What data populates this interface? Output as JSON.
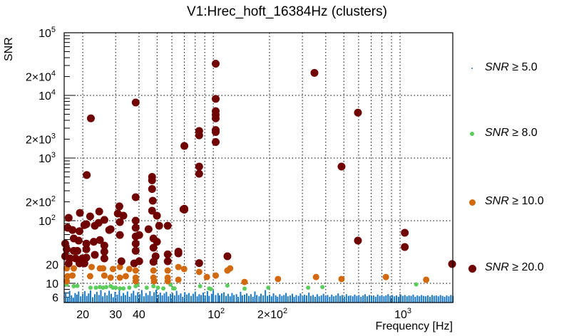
{
  "chart_data": {
    "type": "scatter",
    "title": "V1:Hrec_hoft_16384Hz (clusters)",
    "xlabel": "Frequency [Hz]",
    "ylabel": "SNR",
    "xscale": "log",
    "yscale": "log",
    "xlim": [
      15.9,
      1916
    ],
    "ylim": [
      4.93,
      100000
    ],
    "grid": true,
    "legend_position": "right",
    "x_ticks": [
      {
        "value": 20,
        "base": "20",
        "exp": ""
      },
      {
        "value": 30,
        "base": "30",
        "exp": ""
      },
      {
        "value": 40,
        "base": "40",
        "exp": ""
      },
      {
        "value": 100,
        "base": "10",
        "exp": "2"
      },
      {
        "value": 200,
        "base": "2×10",
        "exp": "2"
      },
      {
        "value": 1000,
        "base": "10",
        "exp": "3"
      }
    ],
    "y_ticks": [
      {
        "value": 100000,
        "base": "10",
        "exp": "5"
      },
      {
        "value": 20000,
        "base": "2×10",
        "exp": "4"
      },
      {
        "value": 10000,
        "base": "10",
        "exp": "4"
      },
      {
        "value": 2000,
        "base": "2×10",
        "exp": "3"
      },
      {
        "value": 1000,
        "base": "10",
        "exp": "3"
      },
      {
        "value": 200,
        "base": "2×10",
        "exp": "2"
      },
      {
        "value": 100,
        "base": "10",
        "exp": "2"
      },
      {
        "value": 20,
        "base": "20",
        "exp": ""
      },
      {
        "value": 10,
        "base": "10",
        "exp": ""
      },
      {
        "value": 6,
        "base": "6",
        "exp": ""
      }
    ],
    "series": [
      {
        "name": "SNR ≥ 5.0",
        "legend": {
          "var": "SNR",
          "op": "≥",
          "value": "5.0"
        },
        "color": "#1a78c2",
        "marker": "bar",
        "f": [
          16.2,
          16.6,
          17,
          17.4,
          17.8,
          18.2,
          18.6,
          19,
          19.5,
          20,
          20.5,
          21,
          21.5,
          22,
          22.6,
          23.2,
          23.8,
          24.4,
          25,
          25.6,
          26.3,
          27,
          27.7,
          28.4,
          29.1,
          29.8,
          30.6,
          31.4,
          32.2,
          33,
          33.8,
          34.7,
          35.6,
          36.5,
          37.4,
          38.4,
          39.4,
          40.4,
          41.4,
          42.5,
          43.6,
          44.7,
          45.8,
          47,
          48.2,
          49.4,
          50.7,
          52,
          53.3,
          54.7,
          56.1,
          57.5,
          59,
          60.5,
          62,
          63.6,
          65.2,
          66.9,
          68.6,
          70.4,
          72.2,
          74,
          76,
          78,
          80,
          82,
          84,
          86,
          88.3,
          90.5,
          93,
          95,
          98,
          100,
          103,
          106,
          108,
          111,
          114,
          117,
          120,
          123,
          126,
          129,
          133,
          136,
          140,
          143,
          147,
          151,
          155,
          159,
          163,
          167,
          171,
          176,
          180,
          185,
          190,
          195,
          200,
          205,
          210,
          216,
          221,
          227,
          233,
          239,
          245,
          251,
          258,
          265,
          271,
          278,
          286,
          293,
          301,
          308,
          316,
          325,
          333,
          342,
          351,
          360,
          369,
          379,
          389,
          399,
          409,
          420,
          431,
          442,
          454,
          466,
          478,
          490,
          503,
          516,
          530,
          543,
          558,
          572,
          587,
          602,
          618,
          634,
          650,
          667,
          685,
          703,
          721,
          740,
          759,
          779,
          799,
          820,
          841,
          863,
          886,
          909,
          933,
          957,
          982,
          1008,
          1034,
          1061,
          1089,
          1117,
          1146,
          1176,
          1207,
          1239,
          1271,
          1304,
          1338,
          1373,
          1409,
          1446,
          1484,
          1522,
          1562,
          1603,
          1645,
          1688,
          1732,
          1777,
          1824,
          1871,
          1920
        ],
        "snr": [
          7.2,
          6.1,
          7.6,
          6.4,
          5.9,
          7.0,
          6.6,
          7.4,
          6.2,
          6.8,
          7.5,
          6.3,
          6.9,
          7.7,
          6.0,
          6.7,
          7.3,
          6.5,
          7.8,
          6.2,
          7.1,
          6.4,
          7.6,
          6.8,
          6.0,
          7.3,
          6.6,
          7.9,
          6.3,
          7.0,
          6.5,
          7.4,
          6.1,
          6.9,
          7.6,
          6.4,
          7.2,
          6.7,
          7.8,
          6.2,
          7.0,
          6.5,
          7.5,
          6.3,
          7.2,
          7.9,
          6.6,
          7.1,
          6.4,
          6.9,
          7.3,
          6.2,
          6.8,
          7.0,
          6.4,
          7.6,
          6.5,
          6.9,
          6.1,
          7.2,
          6.6,
          7.0,
          6.3,
          6.8,
          7.4,
          6.2,
          6.7,
          6.5,
          7.1,
          6.4,
          7.5,
          6.3,
          6.8,
          7.7,
          6.5,
          7.0,
          6.4,
          6.9,
          7.2,
          6.3,
          6.8,
          6.2,
          7.0,
          6.5,
          6.7,
          6.1,
          7.3,
          6.4,
          6.6,
          6.9,
          6.3,
          6.7,
          6.1,
          7.4,
          6.5,
          6.2,
          6.8,
          6.4,
          7.8,
          6.3,
          6.6,
          6.2,
          6.9,
          6.4,
          6.1,
          6.7,
          6.3,
          6.5,
          7.0,
          6.2,
          6.4,
          6.8,
          6.1,
          6.5,
          6.3,
          6.9,
          6.2,
          6.6,
          6.4,
          7.1,
          6.3,
          6.5,
          6.1,
          6.7,
          6.2,
          6.4,
          6.8,
          6.3,
          6.5,
          6.1,
          6.6,
          6.2,
          6.4,
          6.9,
          6.3,
          6.5,
          6.1,
          6.7,
          6.3,
          6.4,
          6.2,
          6.6,
          6.3,
          6.5,
          6.1,
          6.4,
          6.7,
          6.2,
          6.5,
          6.3,
          6.4,
          6.1,
          6.6,
          6.3,
          6.5,
          6.2,
          6.4,
          6.7,
          6.3,
          6.5,
          6.2,
          6.4,
          6.1,
          6.6,
          6.3,
          6.5,
          6.2,
          6.4,
          6.3,
          6.6,
          6.1,
          6.4,
          6.2,
          6.5,
          6.3,
          6.2,
          6.4,
          6.1,
          6.5,
          6.3,
          6.4,
          6.2,
          6.5,
          6.3,
          6.1,
          6.4,
          6.2,
          6.5,
          6.3
        ]
      },
      {
        "name": "SNR ≥ 8.0",
        "legend": {
          "var": "SNR",
          "op": "≥",
          "value": "8.0"
        },
        "color": "#5ccc5c",
        "marker": "dot-small",
        "points": [
          [
            16.4,
            9.5
          ],
          [
            17.9,
            9
          ],
          [
            18.7,
            9.1
          ],
          [
            22,
            8.5
          ],
          [
            23.5,
            8.5
          ],
          [
            24.7,
            8.7
          ],
          [
            25.7,
            8.5
          ],
          [
            26.7,
            8.7
          ],
          [
            28.2,
            9.0
          ],
          [
            29,
            8.5
          ],
          [
            30,
            8.5
          ],
          [
            31.6,
            8.3
          ],
          [
            33,
            8.3
          ],
          [
            35.5,
            8.5
          ],
          [
            38.4,
            9.0
          ],
          [
            39.2,
            9.5
          ],
          [
            44,
            8.5
          ],
          [
            47.8,
            9.0
          ],
          [
            50.5,
            8.5
          ],
          [
            54,
            8.3
          ],
          [
            59,
            9.5
          ],
          [
            61,
            8.3
          ],
          [
            62,
            8.3
          ],
          [
            85,
            9.0
          ],
          [
            95,
            8.3
          ],
          [
            97,
            8.1
          ],
          [
            119,
            9.2
          ],
          [
            147,
            8.2
          ],
          [
            197,
            8.5
          ],
          [
            322,
            8.5
          ],
          [
            384,
            8.7
          ],
          [
            1220,
            9.6
          ]
        ]
      },
      {
        "name": "SNR ≥ 10.0",
        "legend": {
          "var": "SNR",
          "op": "≥",
          "value": "10.0"
        },
        "color": "#d2690f",
        "marker": "dot-medium",
        "points": [
          [
            16.4,
            17.3
          ],
          [
            17.9,
            17.3
          ],
          [
            16.6,
            13
          ],
          [
            17.6,
            13.3
          ],
          [
            16.4,
            10.8
          ],
          [
            22.3,
            18.2
          ],
          [
            21.9,
            13
          ],
          [
            24.7,
            17.3
          ],
          [
            25.7,
            17.3
          ],
          [
            26.1,
            13.3
          ],
          [
            28.2,
            12.3
          ],
          [
            29,
            16.9
          ],
          [
            31.6,
            18.2
          ],
          [
            31.6,
            12.3
          ],
          [
            34,
            13
          ],
          [
            35.5,
            16.9
          ],
          [
            38.4,
            16
          ],
          [
            38.4,
            12.3
          ],
          [
            38.4,
            10.8
          ],
          [
            47.8,
            16
          ],
          [
            47.8,
            12.3
          ],
          [
            48.2,
            10.8
          ],
          [
            57,
            16
          ],
          [
            57,
            12.3
          ],
          [
            57,
            10.8
          ],
          [
            65,
            18.2
          ],
          [
            65,
            11.4
          ],
          [
            69.8,
            16.9
          ],
          [
            84,
            15.2
          ],
          [
            92.4,
            12.6
          ],
          [
            103,
            13.3
          ],
          [
            119,
            16
          ],
          [
            123,
            17.3
          ],
          [
            147,
            10.5
          ],
          [
            222,
            11.7
          ],
          [
            355,
            12.6
          ],
          [
            486,
            11.7
          ],
          [
            840,
            12.6
          ],
          [
            1380,
            11.4
          ]
        ]
      },
      {
        "name": "SNR ≥ 20.0",
        "legend": {
          "var": "SNR",
          "op": "≥",
          "value": "20.0"
        },
        "color": "#700000",
        "marker": "dot-large",
        "points": [
          [
            103,
            32000
          ],
          [
            348,
            22900
          ],
          [
            103,
            8800
          ],
          [
            103,
            5600
          ],
          [
            103,
            4900
          ],
          [
            103,
            4300
          ],
          [
            103,
            2800
          ],
          [
            103,
            2600
          ],
          [
            103,
            1800
          ],
          [
            38.4,
            7700
          ],
          [
            22.1,
            4300
          ],
          [
            595,
            5300
          ],
          [
            84,
            2700
          ],
          [
            84,
            2300
          ],
          [
            70,
            1560
          ],
          [
            486,
            730
          ],
          [
            84,
            730
          ],
          [
            84,
            560
          ],
          [
            21,
            535
          ],
          [
            47,
            500
          ],
          [
            47,
            440
          ],
          [
            47,
            320
          ],
          [
            47.4,
            208
          ],
          [
            38.4,
            237
          ],
          [
            70,
            155
          ],
          [
            70,
            150
          ],
          [
            1060,
            64
          ],
          [
            1060,
            38
          ],
          [
            1900,
            20.3
          ],
          [
            595,
            48
          ],
          [
            119,
            27
          ],
          [
            84,
            21
          ],
          [
            65,
            30
          ],
          [
            16.8,
            111
          ],
          [
            19.3,
            133
          ],
          [
            21.9,
            117
          ],
          [
            24.5,
            140
          ],
          [
            26.1,
            103
          ],
          [
            31.4,
            169
          ],
          [
            30.8,
            130
          ],
          [
            33,
            120
          ],
          [
            31.6,
            95
          ],
          [
            38.4,
            100
          ],
          [
            49.9,
            120
          ],
          [
            47,
            144
          ],
          [
            69.2,
            152
          ],
          [
            16.6,
            77
          ],
          [
            17.6,
            71
          ],
          [
            19.2,
            68
          ],
          [
            20.4,
            85
          ],
          [
            20.9,
            88
          ],
          [
            23.2,
            83
          ],
          [
            24.3,
            92
          ],
          [
            28.2,
            73
          ],
          [
            27.7,
            71
          ],
          [
            31.6,
            59
          ],
          [
            38.4,
            77
          ],
          [
            38.4,
            56
          ],
          [
            40.1,
            59
          ],
          [
            45,
            73
          ],
          [
            51.3,
            83
          ],
          [
            57,
            83
          ],
          [
            16.1,
            43
          ],
          [
            17.9,
            52
          ],
          [
            19,
            48
          ],
          [
            20.9,
            43
          ],
          [
            22.9,
            46
          ],
          [
            24.7,
            49
          ],
          [
            26.1,
            40
          ],
          [
            38.4,
            43
          ],
          [
            47.8,
            52
          ],
          [
            49.9,
            46
          ],
          [
            16.4,
            35
          ],
          [
            17.9,
            33
          ],
          [
            18.7,
            33
          ],
          [
            20.9,
            35
          ],
          [
            23.2,
            28.5
          ],
          [
            26.1,
            32
          ],
          [
            38.4,
            33
          ],
          [
            47.8,
            37
          ],
          [
            57,
            29
          ],
          [
            65,
            32
          ],
          [
            16.1,
            27
          ],
          [
            17.1,
            25
          ],
          [
            18.3,
            25
          ],
          [
            19.9,
            25
          ],
          [
            20.9,
            25.7
          ],
          [
            26.1,
            25
          ],
          [
            32.2,
            22.5
          ],
          [
            37.7,
            20.8
          ],
          [
            40.1,
            22.5
          ],
          [
            49.1,
            27
          ],
          [
            47.8,
            22
          ],
          [
            57,
            22.5
          ],
          [
            16.8,
            20.8
          ],
          [
            19.2,
            20.8
          ],
          [
            20.4,
            20.8
          ]
        ]
      }
    ]
  }
}
